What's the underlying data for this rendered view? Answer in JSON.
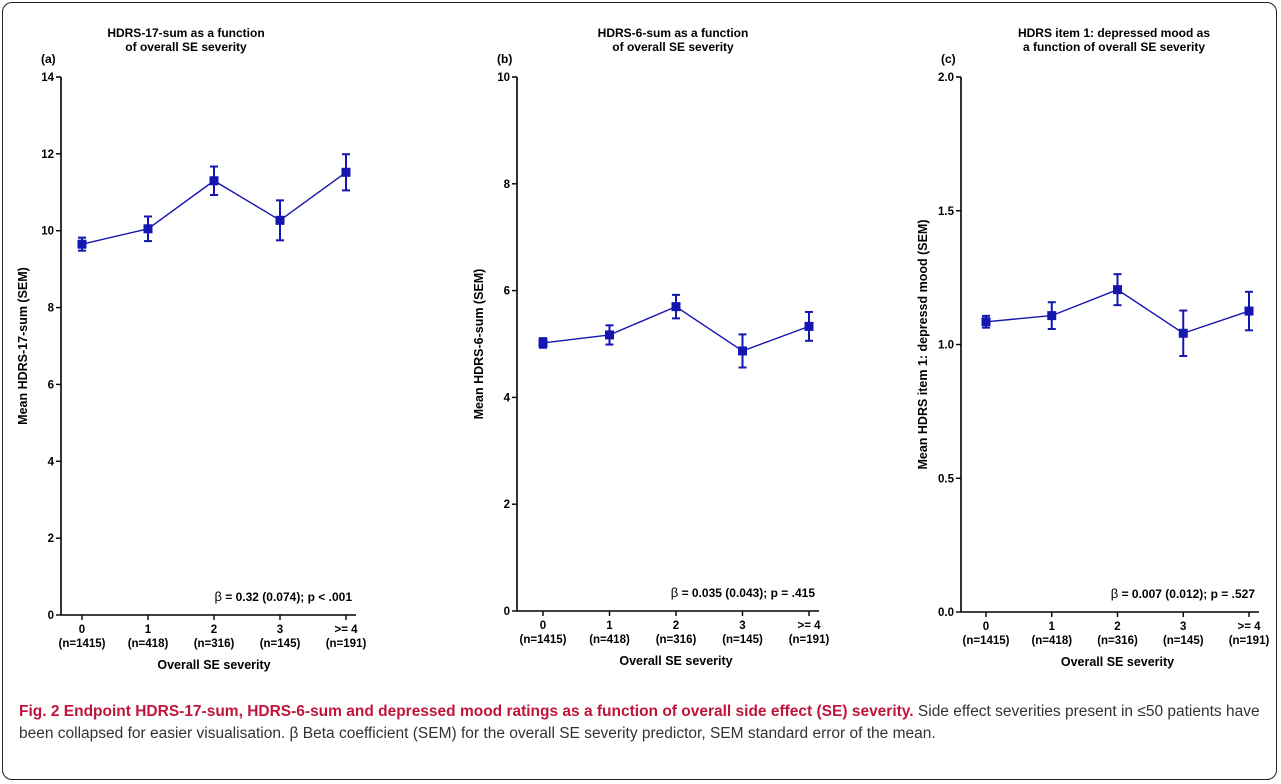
{
  "figure": {
    "caption_bold": "Fig. 2 Endpoint HDRS-17-sum, HDRS-6-sum and depressed mood ratings as a function of overall side effect (SE) severity.",
    "caption_text": "Side effect severities present in ≤50 patients have been collapsed for easier visualisation. β Beta coefficient (SEM) for the overall SE severity predictor, SEM standard error of the mean."
  },
  "colors": {
    "series": "#1515b0",
    "axis": "#000000",
    "caption_bold": "#c0143c"
  },
  "chart_data": [
    {
      "type": "line",
      "panel_label": "(a)",
      "title_lines": [
        "HDRS-17-sum as a function",
        "of overall SE severity"
      ],
      "xlabel": "Overall SE severity",
      "ylabel": "Mean HDRS-17-sum (SEM)",
      "categories": [
        "0",
        "1",
        "2",
        "3",
        ">= 4"
      ],
      "category_counts": [
        "(n=1415)",
        "(n=418)",
        "(n=316)",
        "(n=145)",
        "(n=191)"
      ],
      "ylim": [
        0,
        14
      ],
      "yticks": [
        "0",
        "2",
        "4",
        "6",
        "8",
        "10",
        "12",
        "14"
      ],
      "series": [
        {
          "values": [
            9.65,
            10.05,
            11.3,
            10.27,
            11.52
          ],
          "errors": [
            0.17,
            0.32,
            0.37,
            0.52,
            0.47
          ]
        }
      ],
      "annotation_beta": "β",
      "annotation": "= 0.32 (0.074); p < .001",
      "grid": false
    },
    {
      "type": "line",
      "panel_label": "(b)",
      "title_lines": [
        "HDRS-6-sum as a function",
        "of overall SE severity"
      ],
      "xlabel": "Overall SE severity",
      "ylabel": "Mean HDRS-6-sum (SEM)",
      "categories": [
        "0",
        "1",
        "2",
        "3",
        ">= 4"
      ],
      "category_counts": [
        "(n=1415)",
        "(n=418)",
        "(n=316)",
        "(n=145)",
        "(n=191)"
      ],
      "ylim": [
        0,
        10
      ],
      "yticks": [
        "0",
        "2",
        "4",
        "6",
        "8",
        "10"
      ],
      "series": [
        {
          "values": [
            5.02,
            5.17,
            5.7,
            4.87,
            5.33
          ],
          "errors": [
            0.09,
            0.18,
            0.22,
            0.31,
            0.27
          ]
        }
      ],
      "annotation_beta": "β",
      "annotation": "= 0.035 (0.043); p = .415",
      "grid": false
    },
    {
      "type": "line",
      "panel_label": "(c)",
      "title_lines": [
        "HDRS item 1: depressed mood as",
        "a function of overall SE severity"
      ],
      "xlabel": "Overall SE severity",
      "ylabel": "Mean HDRS item 1: depressd mood (SEM)",
      "categories": [
        "0",
        "1",
        "2",
        "3",
        ">= 4"
      ],
      "category_counts": [
        "(n=1415)",
        "(n=418)",
        "(n=316)",
        "(n=145)",
        "(n=191)"
      ],
      "ylim": [
        0,
        2.0
      ],
      "yticks": [
        "0.0",
        "0.5",
        "1.0",
        "1.5",
        "2.0"
      ],
      "series": [
        {
          "values": [
            1.085,
            1.108,
            1.205,
            1.042,
            1.125
          ],
          "errors": [
            0.022,
            0.05,
            0.058,
            0.085,
            0.072
          ]
        }
      ],
      "annotation_beta": "β",
      "annotation": "= 0.007 (0.012); p = .527",
      "grid": false
    }
  ]
}
